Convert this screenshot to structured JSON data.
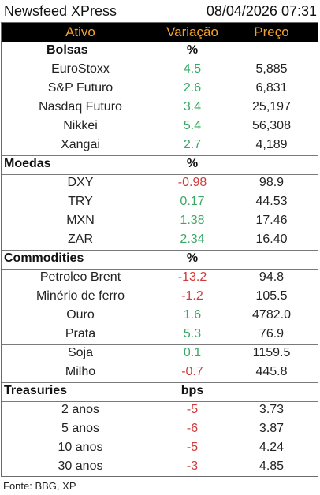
{
  "title": "Newsfeed XPress",
  "timestamp": "08/04/2026 07:31",
  "columns": {
    "ativo": "Ativo",
    "variacao": "Variação",
    "preco": "Preço"
  },
  "sections": [
    {
      "label": "Bolsas",
      "unit": "%",
      "rows": [
        {
          "asset": "EuroStoxx",
          "change": "4.5",
          "price": "5,885"
        },
        {
          "asset": "S&P Futuro",
          "change": "2.6",
          "price": "6,831"
        },
        {
          "asset": "Nasdaq Futuro",
          "change": "3.4",
          "price": "25,197"
        },
        {
          "asset": "Nikkei",
          "change": "5.4",
          "price": "56,308"
        },
        {
          "asset": "Xangai",
          "change": "2.7",
          "price": "4,189"
        }
      ]
    },
    {
      "label": "Moedas",
      "unit": "%",
      "rows": [
        {
          "asset": "DXY",
          "change": "-0.98",
          "price": "98.9"
        },
        {
          "asset": "TRY",
          "change": "0.17",
          "price": "44.53"
        },
        {
          "asset": "MXN",
          "change": "1.38",
          "price": "17.46"
        },
        {
          "asset": "ZAR",
          "change": "2.34",
          "price": "16.40"
        }
      ]
    },
    {
      "label": "Commodities",
      "unit": "%",
      "rows": [
        {
          "asset": "Petroleo Brent",
          "change": "-13.2",
          "price": "94.8"
        },
        {
          "asset": "Minério de ferro",
          "change": "-1.2",
          "price": "105.5"
        },
        {
          "asset": "Ouro",
          "change": "1.6",
          "price": "4782.0"
        },
        {
          "asset": "Prata",
          "change": "5.3",
          "price": "76.9"
        },
        {
          "asset": "Soja",
          "change": "0.1",
          "price": "1159.5"
        },
        {
          "asset": "Milho",
          "change": "-0.7",
          "price": "445.8"
        }
      ]
    },
    {
      "label": "Treasuries",
      "unit": "bps",
      "rows": [
        {
          "asset": "2 anos",
          "change": "-5",
          "price": "3.73"
        },
        {
          "asset": "5 anos",
          "change": "-6",
          "price": "3.87"
        },
        {
          "asset": "10 anos",
          "change": "-5",
          "price": "4.24"
        },
        {
          "asset": "30 anos",
          "change": "-3",
          "price": "4.85"
        }
      ]
    }
  ],
  "footer": "Fonte: BBG, XP",
  "colors": {
    "header_bg": "#000000",
    "header_text": "#f2a12b",
    "positive": "#3aa864",
    "negative": "#d23a3a"
  }
}
